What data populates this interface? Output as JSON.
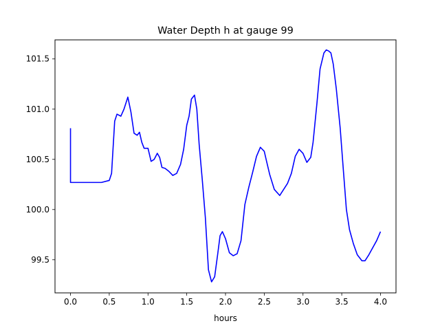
{
  "chart_data": {
    "type": "line",
    "title": "Water Depth h at gauge 99",
    "xlabel": "hours",
    "ylabel": "",
    "xlim": [
      -0.2,
      4.2
    ],
    "ylim": [
      99.17,
      101.69
    ],
    "x_ticks": [
      0.0,
      0.5,
      1.0,
      1.5,
      2.0,
      2.5,
      3.0,
      3.5,
      4.0
    ],
    "x_tick_labels": [
      "0.0",
      "0.5",
      "1.0",
      "1.5",
      "2.0",
      "2.5",
      "3.0",
      "3.5",
      "4.0"
    ],
    "y_ticks": [
      99.5,
      100.0,
      100.5,
      101.0,
      101.5
    ],
    "y_tick_labels": [
      "99.5",
      "100.0",
      "100.5",
      "101.0",
      "101.5"
    ],
    "grid": false,
    "legend": "none",
    "series": [
      {
        "color": "#0000ff",
        "x": [
          0.0,
          0.0,
          0.05,
          0.2,
          0.4,
          0.5,
          0.53,
          0.57,
          0.6,
          0.65,
          0.69,
          0.74,
          0.78,
          0.82,
          0.86,
          0.89,
          0.92,
          0.95,
          1.0,
          1.04,
          1.08,
          1.12,
          1.15,
          1.18,
          1.22,
          1.27,
          1.32,
          1.37,
          1.42,
          1.46,
          1.5,
          1.53,
          1.56,
          1.6,
          1.63,
          1.66,
          1.7,
          1.74,
          1.78,
          1.82,
          1.86,
          1.9,
          1.93,
          1.96,
          2.0,
          2.05,
          2.1,
          2.15,
          2.2,
          2.25,
          2.3,
          2.35,
          2.4,
          2.45,
          2.5,
          2.53,
          2.57,
          2.63,
          2.7,
          2.75,
          2.8,
          2.85,
          2.9,
          2.95,
          3.0,
          3.05,
          3.1,
          3.13,
          3.18,
          3.22,
          3.27,
          3.3,
          3.33,
          3.36,
          3.39,
          3.43,
          3.48,
          3.52,
          3.56,
          3.6,
          3.65,
          3.7,
          3.76,
          3.8,
          3.85,
          3.9,
          3.95,
          4.0
        ],
        "y": [
          100.81,
          100.27,
          100.27,
          100.27,
          100.27,
          100.29,
          100.36,
          100.88,
          100.95,
          100.93,
          101.0,
          101.12,
          100.97,
          100.76,
          100.74,
          100.77,
          100.67,
          100.61,
          100.61,
          100.48,
          100.5,
          100.56,
          100.52,
          100.42,
          100.41,
          100.38,
          100.34,
          100.36,
          100.45,
          100.6,
          100.84,
          100.93,
          101.1,
          101.14,
          101.0,
          100.65,
          100.3,
          99.92,
          99.4,
          99.28,
          99.33,
          99.56,
          99.74,
          99.78,
          99.71,
          99.57,
          99.54,
          99.56,
          99.69,
          100.05,
          100.22,
          100.37,
          100.53,
          100.62,
          100.58,
          100.48,
          100.35,
          100.2,
          100.14,
          100.2,
          100.26,
          100.36,
          100.53,
          100.6,
          100.56,
          100.47,
          100.52,
          100.67,
          101.06,
          101.4,
          101.56,
          101.59,
          101.58,
          101.56,
          101.45,
          101.2,
          100.81,
          100.4,
          100.0,
          99.8,
          99.66,
          99.55,
          99.49,
          99.49,
          99.55,
          99.62,
          99.69,
          99.78
        ]
      }
    ]
  }
}
